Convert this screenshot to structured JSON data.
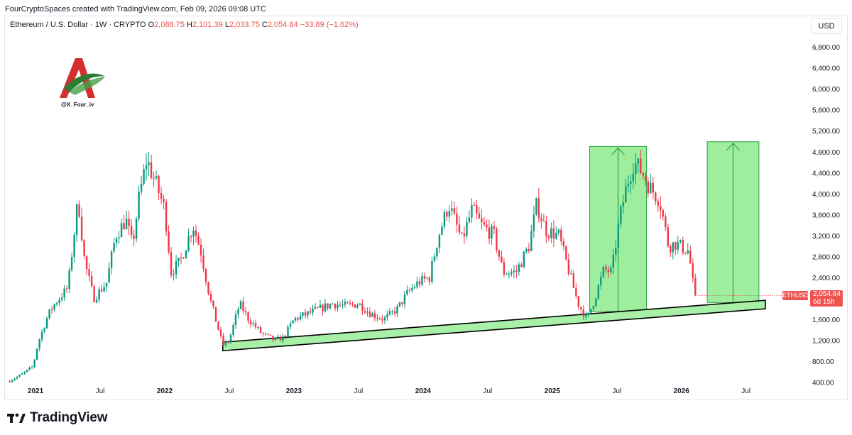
{
  "header": {
    "caption": "FourCryptoSpaces created with TradingView.com, Feb 09, 2026 09:08 UTC"
  },
  "legend": {
    "symbol": "Ethereum / U.S. Dollar · 1W · CRYPTO",
    "o_label": "O",
    "o": "2,088.75",
    "h_label": "H",
    "h": "2,101.39",
    "l_label": "L",
    "l": "2,033.75",
    "c_label": "C",
    "c": "2,054.84",
    "change": "−33.89 (−1.62%)"
  },
  "currency_button": "USD",
  "watermark": {
    "handle": "@X_Four_iv"
  },
  "price_label": {
    "ticker": "ETHUSD",
    "price": "2,054.84",
    "countdown": "6d 15h"
  },
  "brand": {
    "name": "TradingView"
  },
  "colors": {
    "up": "#26a69a",
    "down": "#ef5350",
    "candle_up": "#089981",
    "candle_down": "#f23645",
    "zone_fill": "#7ee87e",
    "zone_stroke": "#2ea043",
    "channel_fill": "#a8f0a8"
  },
  "chart_data": {
    "type": "candlestick",
    "title": "Ethereum / U.S. Dollar · 1W · CRYPTO",
    "y_ticks": [
      "6,800.00",
      "6,400.00",
      "6,000.00",
      "5,600.00",
      "5,200.00",
      "4,800.00",
      "4,400.00",
      "4,000.00",
      "3,600.00",
      "3,200.00",
      "2,800.00",
      "2,400.00",
      "2,000.00",
      "1,600.00",
      "1,200.00",
      "800.00",
      "400.00"
    ],
    "y_tick_values": [
      6800,
      6400,
      6000,
      5600,
      5200,
      4800,
      4400,
      4000,
      3600,
      3200,
      2800,
      2400,
      2000,
      1600,
      1200,
      800,
      400
    ],
    "ylim": [
      380,
      7100
    ],
    "x_ticks": [
      {
        "label": "2021",
        "bold": true,
        "t": 2021.0
      },
      {
        "label": "Jul",
        "bold": false,
        "t": 2021.5
      },
      {
        "label": "2022",
        "bold": true,
        "t": 2022.0
      },
      {
        "label": "Jul",
        "bold": false,
        "t": 2022.5
      },
      {
        "label": "2023",
        "bold": true,
        "t": 2023.0
      },
      {
        "label": "Jul",
        "bold": false,
        "t": 2023.5
      },
      {
        "label": "2024",
        "bold": true,
        "t": 2024.0
      },
      {
        "label": "Jul",
        "bold": false,
        "t": 2024.5
      },
      {
        "label": "2025",
        "bold": true,
        "t": 2025.0
      },
      {
        "label": "Jul",
        "bold": false,
        "t": 2025.5
      },
      {
        "label": "2026",
        "bold": true,
        "t": 2026.0
      },
      {
        "label": "Jul",
        "bold": false,
        "t": 2026.5
      }
    ],
    "xlim": [
      2020.78,
      2026.98
    ],
    "anchors": [
      [
        2020.8,
        420
      ],
      [
        2020.9,
        560
      ],
      [
        2020.98,
        700
      ],
      [
        2021.02,
        1150
      ],
      [
        2021.1,
        1700
      ],
      [
        2021.15,
        1900
      ],
      [
        2021.25,
        2200
      ],
      [
        2021.33,
        3900
      ],
      [
        2021.38,
        2700
      ],
      [
        2021.45,
        2000
      ],
      [
        2021.55,
        2300
      ],
      [
        2021.62,
        3200
      ],
      [
        2021.7,
        3500
      ],
      [
        2021.75,
        3000
      ],
      [
        2021.8,
        3900
      ],
      [
        2021.86,
        4650
      ],
      [
        2021.93,
        4200
      ],
      [
        2022.0,
        3700
      ],
      [
        2022.05,
        2500
      ],
      [
        2022.12,
        2700
      ],
      [
        2022.22,
        3400
      ],
      [
        2022.28,
        2900
      ],
      [
        2022.35,
        2000
      ],
      [
        2022.45,
        1100
      ],
      [
        2022.5,
        1200
      ],
      [
        2022.58,
        1900
      ],
      [
        2022.65,
        1600
      ],
      [
        2022.75,
        1330
      ],
      [
        2022.85,
        1200
      ],
      [
        2022.92,
        1250
      ],
      [
        2023.0,
        1600
      ],
      [
        2023.1,
        1700
      ],
      [
        2023.2,
        1800
      ],
      [
        2023.3,
        1900
      ],
      [
        2023.4,
        1850
      ],
      [
        2023.5,
        1900
      ],
      [
        2023.6,
        1700
      ],
      [
        2023.7,
        1600
      ],
      [
        2023.8,
        1800
      ],
      [
        2023.88,
        2100
      ],
      [
        2023.96,
        2300
      ],
      [
        2024.05,
        2400
      ],
      [
        2024.12,
        3200
      ],
      [
        2024.2,
        3800
      ],
      [
        2024.3,
        3100
      ],
      [
        2024.38,
        3700
      ],
      [
        2024.45,
        3400
      ],
      [
        2024.55,
        3200
      ],
      [
        2024.62,
        2500
      ],
      [
        2024.72,
        2500
      ],
      [
        2024.82,
        3000
      ],
      [
        2024.88,
        3800
      ],
      [
        2024.95,
        3300
      ],
      [
        2025.05,
        3200
      ],
      [
        2025.12,
        2600
      ],
      [
        2025.2,
        1900
      ],
      [
        2025.27,
        1600
      ],
      [
        2025.33,
        2000
      ],
      [
        2025.4,
        2550
      ],
      [
        2025.46,
        2500
      ],
      [
        2025.52,
        3500
      ],
      [
        2025.58,
        4200
      ],
      [
        2025.63,
        4600
      ],
      [
        2025.7,
        4400
      ],
      [
        2025.76,
        4100
      ],
      [
        2025.83,
        3900
      ],
      [
        2025.9,
        3000
      ],
      [
        2025.96,
        3050
      ],
      [
        2026.02,
        2950
      ],
      [
        2026.06,
        2900
      ],
      [
        2026.08,
        2400
      ],
      [
        2026.11,
        2055
      ]
    ],
    "last_price": 2054.84,
    "support_channel": {
      "start": {
        "t": 2022.45,
        "price": 1000
      },
      "end": {
        "t": 2026.65,
        "price": 1800
      },
      "width": 120
    },
    "target_zones": [
      {
        "t0": 2025.29,
        "t1": 2025.73,
        "price_low": 1750,
        "price_high": 4900
      },
      {
        "t0": 2026.2,
        "t1": 2026.6,
        "price_low": 1920,
        "price_high": 4990
      }
    ]
  }
}
